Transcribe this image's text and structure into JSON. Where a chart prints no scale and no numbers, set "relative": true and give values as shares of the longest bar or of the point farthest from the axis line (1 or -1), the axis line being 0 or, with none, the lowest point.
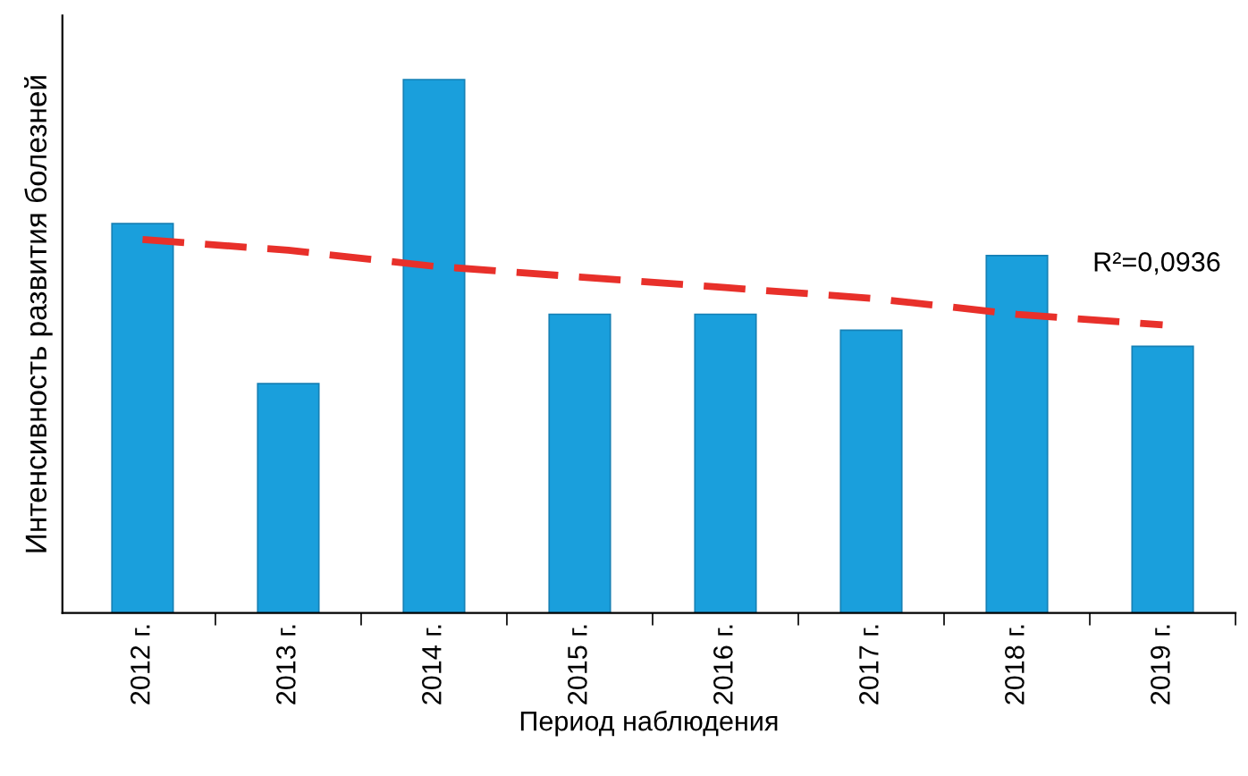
{
  "chart_data": {
    "type": "bar",
    "relative": true,
    "xlabel": "Период наблюдения",
    "ylabel": "Интенсивность развития болезней",
    "categories": [
      "2012 г.",
      "2013 г.",
      "2014 г.",
      "2015 г.",
      "2016 г.",
      "2017 г.",
      "2018 г.",
      "2019 г."
    ],
    "series": [
      {
        "color": "#1a9fdc",
        "values": [
          0.73,
          0.43,
          1,
          0.56,
          0.56,
          0.53,
          0.67,
          0.5
        ]
      },
      {
        "type": "line",
        "color": "#e8302a",
        "line_style": "dashed",
        "values": [
          0.7,
          0.68,
          0.65,
          0.63,
          0.61,
          0.59,
          0.56,
          0.54
        ]
      }
    ],
    "annotations": [
      "R²=0,0936"
    ],
    "grid": false,
    "legend": false
  }
}
